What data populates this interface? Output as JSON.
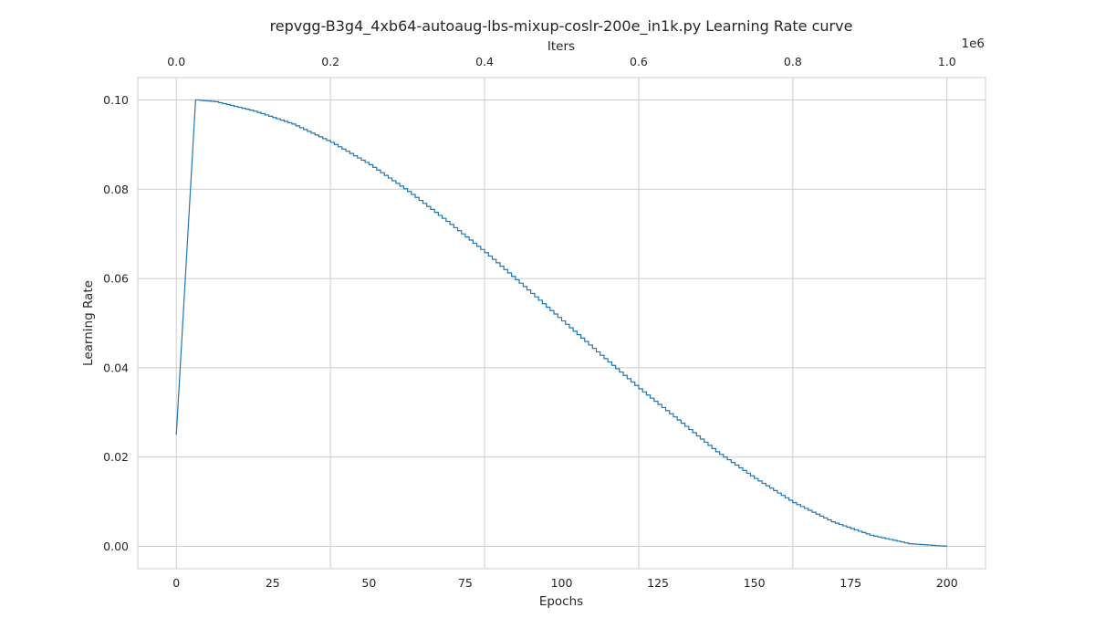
{
  "chart_data": {
    "type": "line",
    "title": "repvgg-B3g4_4xb64-autoaug-lbs-mixup-coslr-200e_in1k.py Learning Rate curve",
    "xlabel": "Epochs",
    "ylabel": "Learning Rate",
    "x2label": "Iters",
    "x2_offset_text": "1e6",
    "xlim": [
      -10,
      210
    ],
    "ylim": [
      -0.005,
      0.105
    ],
    "x2lim": [
      -0.05,
      1.05
    ],
    "x_ticks": [
      0,
      25,
      50,
      75,
      100,
      125,
      150,
      175,
      200
    ],
    "x_tick_labels": [
      "0",
      "25",
      "50",
      "75",
      "100",
      "125",
      "150",
      "175",
      "200"
    ],
    "y_ticks": [
      0.0,
      0.02,
      0.04,
      0.06,
      0.08,
      0.1
    ],
    "y_tick_labels": [
      "0.00",
      "0.02",
      "0.04",
      "0.06",
      "0.08",
      "0.10"
    ],
    "x2_ticks": [
      0.0,
      0.2,
      0.4,
      0.6,
      0.8,
      1.0
    ],
    "x2_tick_labels": [
      "0.0",
      "0.2",
      "0.4",
      "0.6",
      "0.8",
      "1.0"
    ],
    "grid": true,
    "series": [
      {
        "color": "#1f77b4",
        "x": [
          0,
          5,
          10,
          20,
          30,
          40,
          50,
          60,
          70,
          80,
          90,
          100,
          110,
          120,
          130,
          140,
          150,
          160,
          170,
          180,
          190,
          200
        ],
        "y": [
          0.025,
          0.1,
          0.0996,
          0.0975,
          0.0946,
          0.0905,
          0.0855,
          0.0795,
          0.0728,
          0.0658,
          0.0582,
          0.0505,
          0.0428,
          0.0353,
          0.0283,
          0.0212,
          0.0152,
          0.0098,
          0.0055,
          0.0025,
          0.0006,
          0.0
        ]
      }
    ]
  }
}
